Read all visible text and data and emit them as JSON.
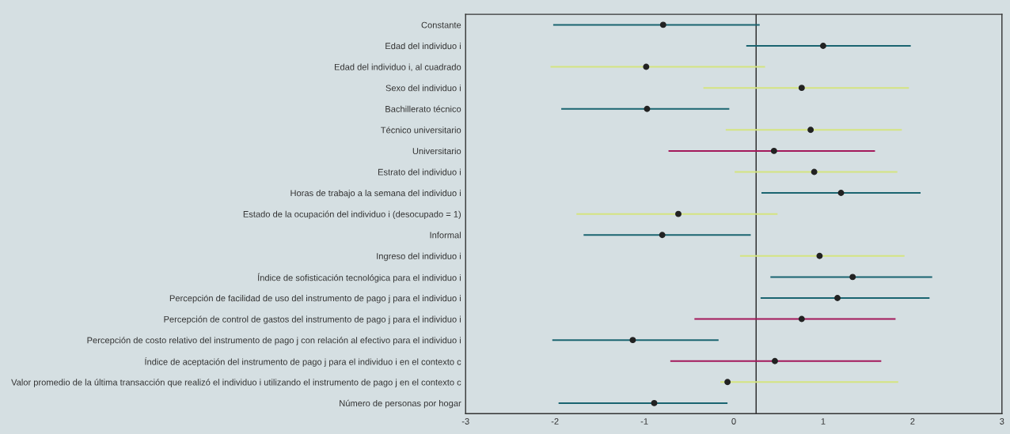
{
  "chart_data": {
    "type": "bar",
    "orientation": "horizontal",
    "categories": [
      "Constante",
      "Edad del individuo i",
      "Edad del individuo i, al cuadrado",
      "Sexo del individuo i",
      "Bachillerato técnico",
      "Técnico universitario",
      "Universitario",
      "Estrato del individuo i",
      "Horas de trabajo a la semana del individuo i",
      "Estado de la ocupación del individuo i (desocupado = 1)",
      "Informal",
      "Ingreso del individuo i",
      "Índice de sofisticación tecnológica para el individuo i",
      "Percepción de facilidad de uso del instrumento de pago j para el individuo i",
      "Percepción de control de gastos del instrumento de pago j para el individuo i",
      "Percepción de costo relativo del instrumento de pago j con relación al efectivo para el individuo i",
      "Índice de aceptación del instrumento de pago j para el individuo i en el contexto c",
      "Valor promedio de la última transacción que realizó el individuo i utilizando el instrumento de pago j en el contexto c",
      "Número de personas por hogar"
    ],
    "series": [
      {
        "base": [
          -2.02,
          0.14,
          -2.05,
          -0.34,
          -1.93,
          -0.09,
          -0.73,
          0.01,
          0.31,
          -1.76,
          -1.68,
          0.07,
          0.41,
          0.3,
          -0.44,
          -2.03,
          -0.71,
          -0.15,
          -1.96
        ],
        "values": [
          2.31,
          1.84,
          2.4,
          2.3,
          1.88,
          1.97,
          2.31,
          1.82,
          1.78,
          2.25,
          1.87,
          1.84,
          1.81,
          1.89,
          2.25,
          1.86,
          2.36,
          1.99,
          1.89
        ],
        "colors": [
          "#1a6470",
          "#1a6470",
          "#d4e480",
          "#d4e480",
          "#1a6470",
          "#d4e480",
          "#a3195b",
          "#d4e480",
          "#1a6470",
          "#d4e480",
          "#1a6470",
          "#d4e480",
          "#1a6470",
          "#1a6470",
          "#a3195b",
          "#1a6470",
          "#a3195b",
          "#d4e480",
          "#1a6470"
        ]
      },
      {
        "type": "scatter",
        "color": "#222222",
        "marker": "circle",
        "values": [
          -0.79,
          1.0,
          -0.98,
          0.76,
          -0.97,
          0.86,
          0.45,
          0.9,
          1.2,
          -0.62,
          -0.8,
          0.96,
          1.33,
          1.16,
          0.76,
          -1.13,
          0.46,
          -0.07,
          -0.89
        ]
      }
    ],
    "xlim": [
      -3,
      3
    ],
    "xticks": [
      -3,
      -2,
      -1,
      0,
      1,
      2,
      3
    ],
    "ref_lines": [
      {
        "axis": "x",
        "value": 0.25,
        "color": "#222222"
      }
    ],
    "grid": false,
    "legend": false
  }
}
